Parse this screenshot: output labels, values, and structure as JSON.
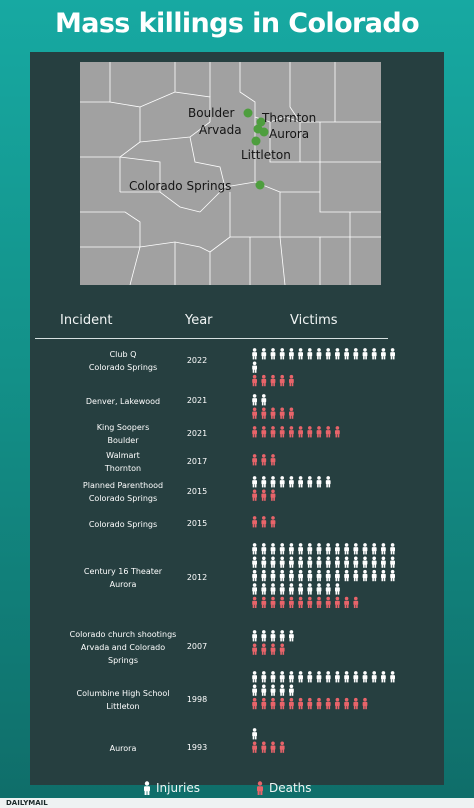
{
  "title": "Mass killings in Colorado",
  "map": {
    "cities": [
      {
        "name": "Boulder"
      },
      {
        "name": "Thornton"
      },
      {
        "name": "Arvada"
      },
      {
        "name": "Aurora"
      },
      {
        "name": "Littleton"
      },
      {
        "name": "Colorado Springs"
      }
    ],
    "fill_color": "#a1a1a1",
    "marker_color": "#4e9e3e"
  },
  "chart_data": {
    "type": "table",
    "columns": [
      "Incident",
      "Year",
      "Victims"
    ],
    "rows": [
      {
        "incident": [
          "Club Q",
          "Colorado Springs"
        ],
        "year": "2022",
        "injuries": 17,
        "deaths": 5
      },
      {
        "incident": [
          "Denver, Lakewood"
        ],
        "year": "2021",
        "injuries": 2,
        "deaths": 5
      },
      {
        "incident": [
          "King Soopers",
          "Boulder"
        ],
        "year": "2021",
        "injuries": 0,
        "deaths": 10
      },
      {
        "incident": [
          "Walmart",
          "Thornton"
        ],
        "year": "2017",
        "injuries": 0,
        "deaths": 3
      },
      {
        "incident": [
          "Planned Parenthood",
          "Colorado Springs"
        ],
        "year": "2015",
        "injuries": 9,
        "deaths": 3
      },
      {
        "incident": [
          "Colorado Springs"
        ],
        "year": "2015",
        "injuries": 0,
        "deaths": 3
      },
      {
        "incident": [
          "Century 16 Theater",
          "Aurora"
        ],
        "year": "2012",
        "injuries": 58,
        "deaths": 12
      },
      {
        "incident": [
          "Colorado church shootings",
          "Arvada and Colorado",
          "Springs"
        ],
        "year": "2007",
        "injuries": 5,
        "deaths": 4
      },
      {
        "incident": [
          "Columbine High School",
          "Littleton"
        ],
        "year": "1998",
        "injuries": 21,
        "deaths": 13
      },
      {
        "incident": [
          "Aurora"
        ],
        "year": "1993",
        "injuries": 1,
        "deaths": 4
      }
    ],
    "legend": [
      {
        "label": "Injuries",
        "color": "#ffffff"
      },
      {
        "label": "Deaths",
        "color": "#e8646a"
      }
    ]
  },
  "brand": "DAILYMAIL"
}
